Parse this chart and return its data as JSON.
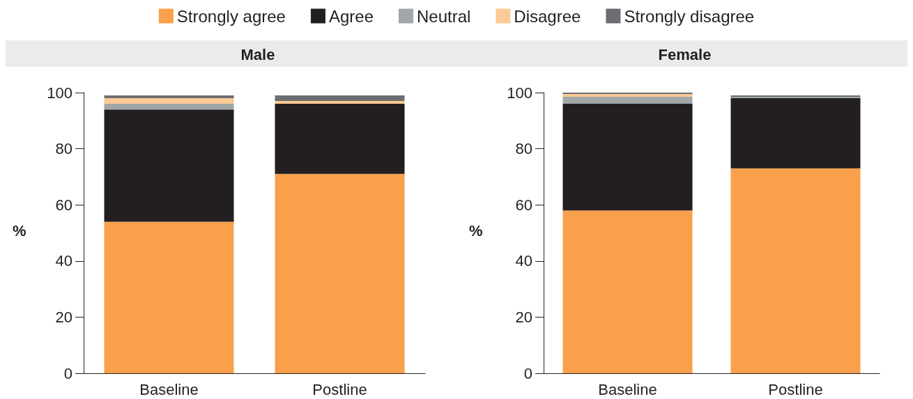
{
  "chart_data": [
    {
      "type": "bar",
      "title": "Male",
      "ylabel": "%",
      "stacked": true,
      "legend": "top",
      "grid": false,
      "categories": [
        "Baseline",
        "Postline"
      ],
      "ylim": [
        0,
        100
      ],
      "yticks": [
        0,
        20,
        40,
        60,
        80,
        100
      ],
      "series": [
        {
          "name": "Strongly agree",
          "color": "#f8a04c",
          "values": [
            54,
            71
          ]
        },
        {
          "name": "Agree",
          "color": "#231f20",
          "values": [
            40,
            25
          ]
        },
        {
          "name": "Neutral",
          "color": "#a0a7a8",
          "values": [
            2,
            0
          ]
        },
        {
          "name": "Disagree",
          "color": "#fdc996",
          "values": [
            2,
            1
          ]
        },
        {
          "name": "Strongly disagree",
          "color": "#6d6e71",
          "values": [
            1,
            2
          ]
        }
      ]
    },
    {
      "type": "bar",
      "title": "Female",
      "ylabel": "%",
      "stacked": true,
      "grid": false,
      "categories": [
        "Baseline",
        "Postline"
      ],
      "ylim": [
        0,
        100
      ],
      "yticks": [
        0,
        20,
        40,
        60,
        80,
        100
      ],
      "series": [
        {
          "color": "#f8a04c",
          "values": [
            58,
            73
          ]
        },
        {
          "color": "#231f20",
          "values": [
            38,
            25
          ]
        },
        {
          "color": "#a0a7a8",
          "values": [
            2.5,
            0.5
          ]
        },
        {
          "color": "#fdc996",
          "values": [
            1,
            0
          ]
        },
        {
          "color": "#6d6e71",
          "values": [
            0.5,
            0.5
          ]
        }
      ]
    }
  ]
}
